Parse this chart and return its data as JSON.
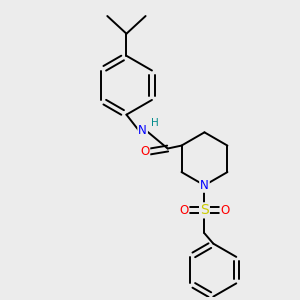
{
  "bg_color": "#ececec",
  "C": "#000000",
  "N": "#0000ff",
  "O": "#ff0000",
  "S": "#cccc00",
  "H": "#008b8b",
  "figsize": [
    3.0,
    3.0
  ],
  "dpi": 100,
  "lw": 1.4,
  "fs": 8.5
}
